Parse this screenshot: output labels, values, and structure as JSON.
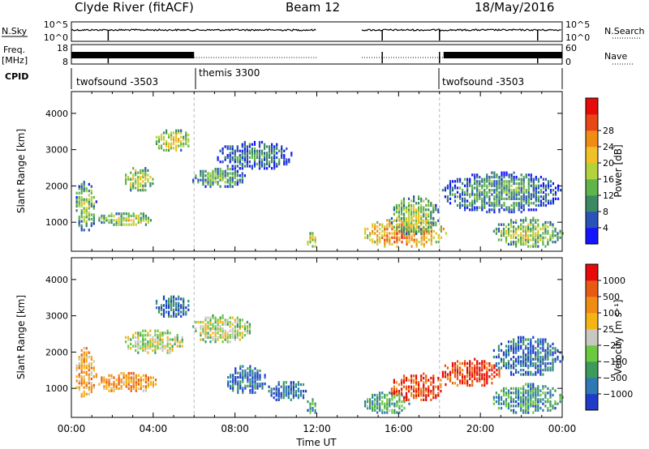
{
  "header": {
    "station": "Clyde River (fitACF)",
    "beam": "Beam 12",
    "date": "18/May/2016"
  },
  "nsky_panel": {
    "left_label": "N.Sky",
    "right_label": "N.Search",
    "left_ticks": [
      "10^5",
      "10^0"
    ],
    "right_ticks": [
      "10^5",
      "10^0"
    ]
  },
  "freq_panel": {
    "left_label_top": "Freq.",
    "left_label_bottom": "[MHz]",
    "left_ticks": [
      "18",
      "8"
    ],
    "right_label": "Nave",
    "right_ticks": [
      "60",
      "0"
    ]
  },
  "cpid": {
    "label": "CPID",
    "entries": [
      {
        "name": "twofsound -3503",
        "start_h": 0
      },
      {
        "name": "themis 3300",
        "start_h": 6
      },
      {
        "name": "twofsound -3503",
        "start_h": 18
      }
    ]
  },
  "chart_data": [
    {
      "type": "heatmap",
      "title": "",
      "ylabel": "Slant Range [km]",
      "xlim_hours": [
        0,
        24
      ],
      "ylim": [
        200,
        4600
      ],
      "y_ticks": [
        1000,
        2000,
        3000,
        4000
      ],
      "colorbar": {
        "label": "Power [dB]",
        "ticks": [
          "4",
          "8",
          "12",
          "16",
          "20",
          "24",
          "28"
        ],
        "colors": [
          "#1414ff",
          "#2a52b8",
          "#3a8a64",
          "#5fb44a",
          "#b4d23c",
          "#f0c028",
          "#f08c14",
          "#e84614",
          "#e60a0a"
        ]
      },
      "blobs": [
        {
          "t0": 0.1,
          "t1": 1.2,
          "r0": 700,
          "r1": 2100,
          "v": 0.45
        },
        {
          "t0": 1.2,
          "t1": 4.2,
          "r0": 850,
          "r1": 1250,
          "v": 0.55
        },
        {
          "t0": 2.5,
          "t1": 4.0,
          "r0": 1800,
          "r1": 2500,
          "v": 0.55
        },
        {
          "t0": 4.0,
          "t1": 5.8,
          "r0": 2900,
          "r1": 3550,
          "v": 0.6
        },
        {
          "t0": 5.8,
          "t1": 8.5,
          "r0": 1900,
          "r1": 2500,
          "v": 0.4
        },
        {
          "t0": 7.0,
          "t1": 10.8,
          "r0": 2400,
          "r1": 3200,
          "v": 0.3
        },
        {
          "t0": 11.4,
          "t1": 12.0,
          "r0": 250,
          "r1": 700,
          "v": 0.6
        },
        {
          "t0": 14.2,
          "t1": 18.3,
          "r0": 250,
          "r1": 1100,
          "v": 0.75
        },
        {
          "t0": 15.5,
          "t1": 18.0,
          "r0": 600,
          "r1": 1700,
          "v": 0.5
        },
        {
          "t0": 18.0,
          "t1": 24.0,
          "r0": 1200,
          "r1": 2400,
          "v": 0.35
        },
        {
          "t0": 20.5,
          "t1": 24.0,
          "r0": 250,
          "r1": 1100,
          "v": 0.5
        }
      ]
    },
    {
      "type": "heatmap",
      "title": "",
      "ylabel": "Slant Range [km]",
      "xlabel": "Time UT",
      "x_ticks": [
        "00:00",
        "04:00",
        "08:00",
        "12:00",
        "16:00",
        "20:00",
        "00:00"
      ],
      "xlim_hours": [
        0,
        24
      ],
      "ylim": [
        200,
        4600
      ],
      "y_ticks": [
        1000,
        2000,
        3000,
        4000
      ],
      "colorbar": {
        "label": "Velocity [m s⁻¹]",
        "ticks": [
          "1000",
          "500",
          "100",
          "25",
          "−25",
          "−100",
          "−500",
          "−1000"
        ],
        "colors": [
          "#1e3cc8",
          "#2e78b4",
          "#3c9a5a",
          "#6cc840",
          "#c8c8c0",
          "#f5b414",
          "#f08c14",
          "#e85a14",
          "#e60a0a"
        ]
      },
      "blobs": [
        {
          "t0": 0.1,
          "t1": 1.2,
          "r0": 700,
          "r1": 2100,
          "v": 0.65
        },
        {
          "t0": 1.2,
          "t1": 4.2,
          "r0": 850,
          "r1": 1400,
          "v": 0.7
        },
        {
          "t0": 2.5,
          "t1": 5.5,
          "r0": 1900,
          "r1": 2600,
          "v": 0.45
        },
        {
          "t0": 4.0,
          "t1": 5.8,
          "r0": 2900,
          "r1": 3550,
          "v": 0.15
        },
        {
          "t0": 5.8,
          "t1": 8.8,
          "r0": 2200,
          "r1": 3000,
          "v": 0.45
        },
        {
          "t0": 7.5,
          "t1": 9.5,
          "r0": 800,
          "r1": 1600,
          "v": 0.15
        },
        {
          "t0": 9.5,
          "t1": 11.5,
          "r0": 600,
          "r1": 1200,
          "v": 0.15
        },
        {
          "t0": 11.4,
          "t1": 12.0,
          "r0": 250,
          "r1": 700,
          "v": 0.25
        },
        {
          "t0": 14.2,
          "t1": 16.5,
          "r0": 250,
          "r1": 900,
          "v": 0.3
        },
        {
          "t0": 15.5,
          "t1": 18.3,
          "r0": 600,
          "r1": 1400,
          "v": 0.85
        },
        {
          "t0": 18.0,
          "t1": 21.0,
          "r0": 1000,
          "r1": 1800,
          "v": 0.9
        },
        {
          "t0": 20.5,
          "t1": 24.0,
          "r0": 1300,
          "r1": 2400,
          "v": 0.15
        },
        {
          "t0": 20.5,
          "t1": 24.0,
          "r0": 250,
          "r1": 1100,
          "v": 0.25
        }
      ]
    }
  ]
}
